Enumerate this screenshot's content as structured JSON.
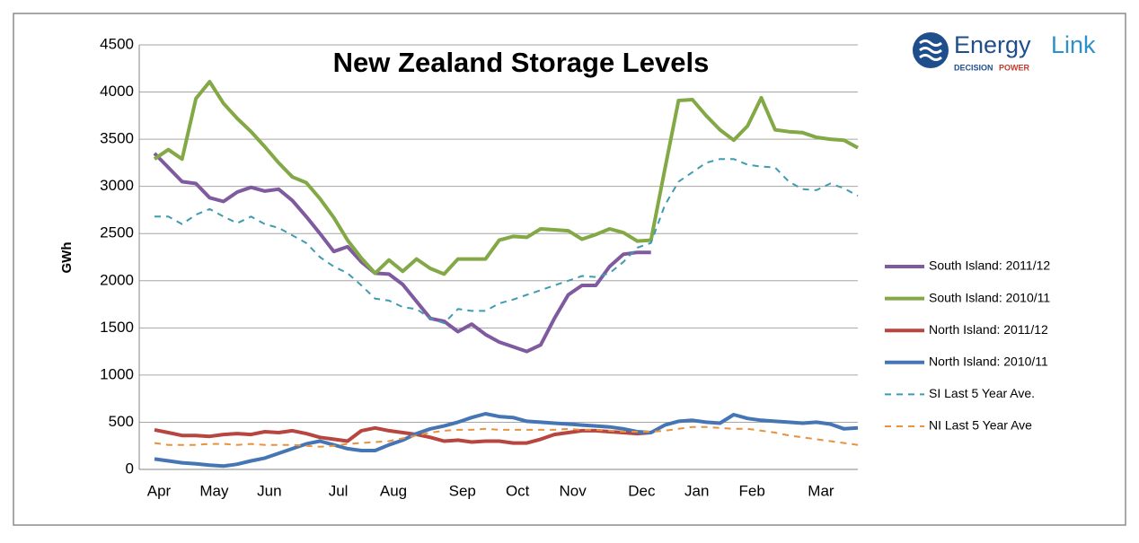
{
  "chart_data": {
    "type": "line",
    "title": "New Zealand Storage Levels",
    "ylabel": "GWh",
    "categories": [
      "Apr",
      null,
      null,
      null,
      "May",
      null,
      null,
      null,
      "Jun",
      null,
      null,
      null,
      null,
      "Jul",
      null,
      null,
      null,
      "Aug",
      null,
      null,
      null,
      null,
      "Sep",
      null,
      null,
      null,
      "Oct",
      null,
      null,
      null,
      "Nov",
      null,
      null,
      null,
      null,
      "Dec",
      null,
      null,
      null,
      "Jan",
      null,
      null,
      null,
      "Feb",
      null,
      null,
      null,
      null,
      "Mar",
      null,
      null,
      null
    ],
    "series": [
      {
        "name": "South Island: 2011/12",
        "color": "#7f5a9f",
        "dashed": false,
        "values": [
          3350,
          3200,
          3050,
          3030,
          2880,
          2840,
          2940,
          2990,
          2950,
          2970,
          2850,
          2680,
          2500,
          2310,
          2360,
          2200,
          2080,
          2070,
          1960,
          1780,
          1600,
          1570,
          1460,
          1540,
          1430,
          1350,
          1300,
          1250,
          1320,
          1600,
          1850,
          1950,
          1950,
          2150,
          2280,
          2300,
          2300,
          null,
          null,
          null,
          null,
          null,
          null,
          null,
          null,
          null,
          null,
          null,
          null,
          null,
          null,
          null
        ]
      },
      {
        "name": "South Island: 2010/11",
        "color": "#83a846",
        "dashed": false,
        "values": [
          3290,
          3390,
          3290,
          3930,
          4110,
          3880,
          3720,
          3580,
          3420,
          3250,
          3100,
          3040,
          2870,
          2670,
          2430,
          2240,
          2080,
          2220,
          2100,
          2230,
          2130,
          2070,
          2230,
          2230,
          2230,
          2430,
          2470,
          2460,
          2550,
          2540,
          2530,
          2440,
          2490,
          2550,
          2510,
          2420,
          2430,
          3180,
          3910,
          3920,
          3750,
          3600,
          3490,
          3640,
          3940,
          3600,
          3580,
          3570,
          3520,
          3500,
          3490,
          3410
        ]
      },
      {
        "name": "North Island: 2011/12",
        "color": "#b6463f",
        "dashed": false,
        "values": [
          420,
          390,
          360,
          360,
          350,
          370,
          380,
          370,
          400,
          390,
          410,
          380,
          340,
          320,
          300,
          410,
          440,
          410,
          390,
          370,
          340,
          300,
          310,
          290,
          300,
          300,
          280,
          280,
          320,
          370,
          390,
          410,
          410,
          400,
          390,
          380,
          390,
          null,
          null,
          null,
          null,
          null,
          null,
          null,
          null,
          null,
          null,
          null,
          null,
          null,
          null,
          null
        ]
      },
      {
        "name": "North Island: 2010/11",
        "color": "#4575b4",
        "dashed": false,
        "values": [
          110,
          90,
          70,
          60,
          45,
          35,
          55,
          90,
          120,
          170,
          220,
          270,
          300,
          260,
          220,
          200,
          200,
          260,
          310,
          380,
          430,
          460,
          500,
          550,
          590,
          560,
          550,
          510,
          500,
          490,
          480,
          470,
          460,
          450,
          430,
          400,
          390,
          470,
          510,
          520,
          500,
          490,
          580,
          540,
          520,
          510,
          500,
          490,
          500,
          480,
          430,
          440
        ]
      },
      {
        "name": "SI Last 5 Year Ave.",
        "color": "#3e9bb0",
        "dashed": true,
        "values": [
          2680,
          2680,
          2600,
          2700,
          2760,
          2680,
          2610,
          2680,
          2600,
          2560,
          2480,
          2400,
          2250,
          2150,
          2080,
          1950,
          1810,
          1790,
          1720,
          1700,
          1600,
          1550,
          1700,
          1680,
          1680,
          1760,
          1800,
          1850,
          1900,
          1950,
          2000,
          2050,
          2040,
          2080,
          2200,
          2350,
          2400,
          2800,
          3050,
          3150,
          3250,
          3290,
          3290,
          3230,
          3210,
          3200,
          3050,
          2970,
          2960,
          3030,
          2980,
          2900
        ]
      },
      {
        "name": "NI Last 5 Year Ave",
        "color": "#e8923f",
        "dashed": true,
        "values": [
          280,
          260,
          260,
          260,
          270,
          270,
          260,
          270,
          260,
          260,
          260,
          250,
          240,
          250,
          270,
          280,
          290,
          300,
          330,
          360,
          390,
          410,
          420,
          420,
          430,
          420,
          420,
          420,
          420,
          420,
          430,
          420,
          420,
          410,
          400,
          400,
          400,
          410,
          430,
          450,
          450,
          440,
          430,
          430,
          410,
          390,
          360,
          340,
          320,
          300,
          280,
          260
        ]
      }
    ],
    "ylim": [
      0,
      4500
    ],
    "yticks": [
      0,
      500,
      1000,
      1500,
      2000,
      2500,
      3000,
      3500,
      4000,
      4500
    ],
    "grid": true,
    "legend": "right"
  },
  "logo": {
    "words": [
      "Energy",
      "Link"
    ],
    "tagline": [
      "DECISION",
      "POWER"
    ]
  }
}
